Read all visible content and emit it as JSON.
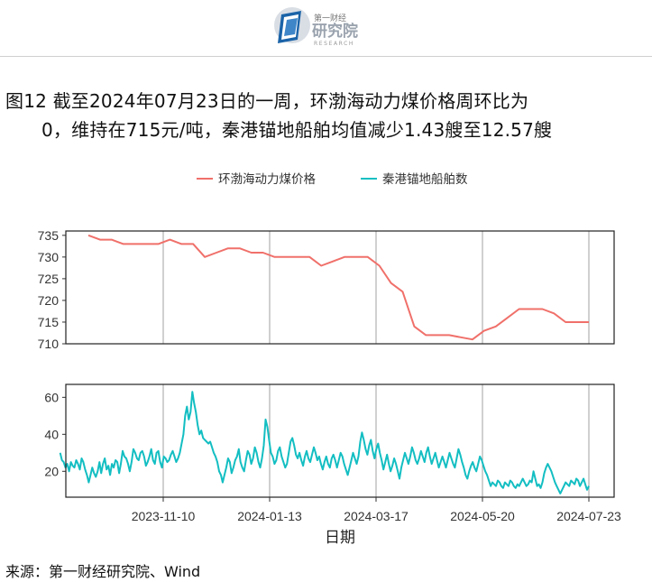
{
  "header": {
    "logo_text_top": "第一财经",
    "logo_text_main": "研究院",
    "logo_text_sub": "RESEARCH"
  },
  "title": {
    "line1": "图12  截至2024年07月23日的一周，环渤海动力煤价格周环比为",
    "line2": "0，维持在715元/吨，秦港锚地船舶均值减少1.43艘至12.57艘"
  },
  "source": "来源：第一财经研究院、Wind",
  "colors": {
    "series1": "#F0706A",
    "series2": "#13BEC2",
    "grid": "#a0a0a0"
  },
  "chart_data": {
    "type": "line",
    "xlabel": "日期",
    "x_ticks": [
      "2023-11-10",
      "2024-01-13",
      "2024-03-17",
      "2024-05-20",
      "2024-07-23"
    ],
    "legend_position": "top",
    "grid": "vertical",
    "panels": [
      {
        "series_name": "环渤海动力煤价格",
        "ylim": [
          710,
          736
        ],
        "y_ticks": [
          710,
          715,
          720,
          725,
          730,
          735
        ],
        "points": [
          [
            "2023-09-26",
            735
          ],
          [
            "2023-10-03",
            734
          ],
          [
            "2023-10-10",
            734
          ],
          [
            "2023-10-17",
            733
          ],
          [
            "2023-10-24",
            733
          ],
          [
            "2023-10-31",
            733
          ],
          [
            "2023-11-07",
            733
          ],
          [
            "2023-11-14",
            734
          ],
          [
            "2023-11-21",
            733
          ],
          [
            "2023-11-28",
            733
          ],
          [
            "2023-12-05",
            730
          ],
          [
            "2023-12-12",
            731
          ],
          [
            "2023-12-19",
            732
          ],
          [
            "2023-12-26",
            732
          ],
          [
            "2024-01-02",
            731
          ],
          [
            "2024-01-09",
            731
          ],
          [
            "2024-01-16",
            730
          ],
          [
            "2024-01-23",
            730
          ],
          [
            "2024-01-30",
            730
          ],
          [
            "2024-02-06",
            730
          ],
          [
            "2024-02-13",
            728
          ],
          [
            "2024-02-20",
            729
          ],
          [
            "2024-02-27",
            730
          ],
          [
            "2024-03-05",
            730
          ],
          [
            "2024-03-12",
            730
          ],
          [
            "2024-03-19",
            728
          ],
          [
            "2024-03-26",
            724
          ],
          [
            "2024-04-02",
            722
          ],
          [
            "2024-04-09",
            714
          ],
          [
            "2024-04-16",
            712
          ],
          [
            "2024-04-23",
            712
          ],
          [
            "2024-04-30",
            712
          ],
          [
            "2024-05-07",
            711.5
          ],
          [
            "2024-05-14",
            711
          ],
          [
            "2024-05-21",
            713
          ],
          [
            "2024-05-28",
            714
          ],
          [
            "2024-06-04",
            716
          ],
          [
            "2024-06-11",
            718
          ],
          [
            "2024-06-18",
            718
          ],
          [
            "2024-06-25",
            718
          ],
          [
            "2024-07-02",
            717
          ],
          [
            "2024-07-09",
            715
          ],
          [
            "2024-07-16",
            715
          ],
          [
            "2024-07-23",
            715
          ]
        ]
      },
      {
        "series_name": "秦港锚地船舶数",
        "ylim": [
          6,
          67
        ],
        "y_ticks": [
          20,
          40,
          60
        ],
        "start_date": "2023-09-09",
        "end_date": "2024-07-23",
        "daily_values": [
          30,
          26,
          25,
          22,
          24,
          20,
          25,
          23,
          22,
          26,
          24,
          21,
          27,
          25,
          21,
          18,
          14,
          18,
          22,
          19,
          17,
          20,
          25,
          19,
          24,
          27,
          21,
          23,
          18,
          24,
          22,
          26,
          25,
          19,
          24,
          31,
          28,
          27,
          24,
          20,
          25,
          32,
          30,
          27,
          26,
          30,
          31,
          28,
          23,
          25,
          28,
          32,
          26,
          24,
          30,
          31,
          25,
          22,
          28,
          27,
          25,
          26,
          29,
          31,
          28,
          25,
          27,
          30,
          35,
          40,
          50,
          55,
          48,
          52,
          63,
          57,
          52,
          45,
          40,
          42,
          38,
          37,
          36,
          35,
          36,
          33,
          30,
          28,
          25,
          20,
          18,
          14,
          18,
          22,
          27,
          25,
          19,
          22,
          26,
          28,
          32,
          25,
          22,
          20,
          26,
          31,
          29,
          24,
          27,
          33,
          30,
          25,
          22,
          27,
          34,
          48,
          44,
          37,
          30,
          28,
          24,
          26,
          31,
          33,
          28,
          25,
          22,
          24,
          30,
          36,
          38,
          34,
          29,
          27,
          30,
          26,
          23,
          28,
          31,
          27,
          25,
          29,
          33,
          30,
          26,
          28,
          24,
          21,
          25,
          28,
          24,
          22,
          27,
          29,
          26,
          22,
          26,
          30,
          28,
          24,
          21,
          18,
          22,
          26,
          30,
          27,
          24,
          28,
          36,
          41,
          37,
          32,
          29,
          34,
          37,
          31,
          27,
          32,
          35,
          30,
          26,
          21,
          25,
          29,
          24,
          20,
          23,
          27,
          24,
          20,
          16,
          22,
          26,
          30,
          27,
          24,
          28,
          33,
          30,
          26,
          24,
          27,
          31,
          28,
          25,
          30,
          33,
          28,
          24,
          27,
          30,
          26,
          22,
          25,
          28,
          25,
          22,
          26,
          30,
          27,
          24,
          22,
          27,
          32,
          29,
          25,
          22,
          18,
          16,
          20,
          23,
          25,
          22,
          20,
          24,
          28,
          26,
          23,
          20,
          18,
          15,
          12,
          14,
          13,
          12,
          15,
          14,
          12,
          11,
          14,
          13,
          12,
          15,
          14,
          12,
          11,
          13,
          12,
          14,
          16,
          14,
          12,
          13,
          15,
          14,
          20,
          16,
          12,
          13,
          11,
          14,
          19,
          22,
          24,
          22,
          20,
          17,
          14,
          12,
          10,
          8,
          10,
          12,
          14,
          13,
          12,
          15,
          14,
          13,
          16,
          15,
          12,
          14,
          16,
          13,
          10,
          12
        ]
      }
    ]
  }
}
